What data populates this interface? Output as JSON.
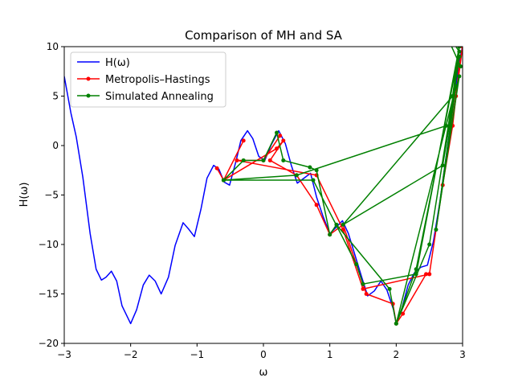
{
  "chart_data": {
    "type": "line",
    "title": "Comparison of MH and SA",
    "x_label": "ω",
    "y_label": "H(ω)",
    "xlim": [
      -3,
      3
    ],
    "ylim": [
      -20,
      10
    ],
    "xticks": [
      {
        "value": -3,
        "label": "−3"
      },
      {
        "value": -2,
        "label": "−2"
      },
      {
        "value": -1,
        "label": "−1"
      },
      0,
      1,
      2,
      3
    ],
    "yticks": [
      {
        "value": -20,
        "label": "−20"
      },
      {
        "value": -15,
        "label": "−15"
      },
      {
        "value": -10,
        "label": "−10"
      },
      {
        "value": -5,
        "label": "−5"
      },
      0,
      5,
      10
    ],
    "grid": false,
    "legend": "upper left",
    "series": [
      {
        "name": "H(ω)",
        "color": "#0000ff",
        "markers": false,
        "x": [
          -3,
          -2.9,
          -2.82,
          -2.72,
          -2.61,
          -2.52,
          -2.44,
          -2.37,
          -2.29,
          -2.21,
          -2.13,
          -2.0,
          -1.91,
          -1.81,
          -1.72,
          -1.63,
          -1.54,
          -1.43,
          -1.33,
          -1.21,
          -1.12,
          -1.04,
          -0.94,
          -0.85,
          -0.75,
          -0.67,
          -0.59,
          -0.51,
          -0.41,
          -0.34,
          -0.24,
          -0.16,
          -0.07,
          0.02,
          0.12,
          0.23,
          0.33,
          0.42,
          0.51,
          0.61,
          0.71,
          0.8,
          0.9,
          1.0,
          1.09,
          1.19,
          1.28,
          1.38,
          1.48,
          1.57,
          1.67,
          1.77,
          1.86,
          1.96,
          2.0,
          2.08,
          2.18,
          2.27,
          2.37,
          2.47,
          2.56,
          2.66,
          2.76,
          2.86,
          2.95,
          3.0
        ],
        "values": [
          7.0,
          3.3,
          0.9,
          -3.2,
          -8.9,
          -12.5,
          -13.6,
          -13.3,
          -12.7,
          -13.7,
          -16.2,
          -18.0,
          -16.6,
          -14.1,
          -13.1,
          -13.7,
          -15.0,
          -13.3,
          -10.1,
          -7.8,
          -8.5,
          -9.2,
          -6.4,
          -3.3,
          -2.0,
          -2.4,
          -3.7,
          -4.0,
          -1.5,
          0.5,
          1.5,
          0.7,
          -1.1,
          -1.5,
          0.1,
          1.5,
          0.2,
          -2.0,
          -3.8,
          -3.3,
          -2.8,
          -5.2,
          -7.2,
          -8.9,
          -8.3,
          -7.6,
          -8.9,
          -11.1,
          -13.3,
          -15.2,
          -14.7,
          -13.7,
          -14.6,
          -16.6,
          -18.0,
          -16.6,
          -14.1,
          -12.9,
          -12.3,
          -12.1,
          -9.7,
          -5.6,
          -0.7,
          4.1,
          8.6,
          10
        ]
      },
      {
        "name": "Metropolis–Hastings",
        "color": "#ff0000",
        "markers": true,
        "x": [
          -0.7,
          -0.6,
          -0.3,
          -0.6,
          0.2,
          0.3,
          0.1,
          0.5,
          0.8,
          1.0,
          1.2,
          1.55,
          1.95,
          2.0,
          2.1,
          2.45,
          2.5,
          2.7,
          2.85,
          2.95,
          3.0,
          2.9,
          2.5,
          1.5,
          1.2,
          0.8,
          -0.4,
          0.0,
          0.25
        ],
        "values": [
          -2.3,
          -3.5,
          0.5,
          -3.5,
          -0.3,
          0.5,
          -1.5,
          -3.0,
          -6.0,
          -9.0,
          -8.0,
          -15.0,
          -16.0,
          -18.0,
          -17.0,
          -13.0,
          -13.0,
          -4.0,
          2.0,
          8.0,
          10.0,
          5.0,
          -13.0,
          -14.5,
          -8.5,
          -3.0,
          -1.5,
          -1.5,
          1.0
        ]
      },
      {
        "name": "Simulated Annealing",
        "color": "#008000",
        "markers": true,
        "x": [
          -0.6,
          -0.3,
          0.0,
          0.2,
          0.3,
          0.7,
          0.8,
          1.0,
          1.1,
          1.9,
          2.0,
          2.5,
          2.95,
          2.8,
          2.7,
          1.2,
          2.85,
          2.95,
          2.3,
          1.5,
          1.4,
          0.75,
          -0.6,
          0.5,
          2.75,
          2.95,
          2.6,
          2.9,
          2.0,
          2.3,
          2.95,
          2.7,
          2.97
        ],
        "values": [
          -3.5,
          -1.5,
          -1.5,
          1.3,
          -1.5,
          -2.2,
          -2.5,
          -9.0,
          -8.0,
          -14.5,
          -18.0,
          -10.0,
          9.0,
          2.0,
          -2.0,
          -8.0,
          5.0,
          10.0,
          -13.0,
          -14.0,
          -12.0,
          -3.5,
          -3.5,
          -3.0,
          2.0,
          7.0,
          -8.5,
          6.0,
          -18.0,
          -12.5,
          9.5,
          12.0,
          8.0
        ]
      }
    ]
  }
}
